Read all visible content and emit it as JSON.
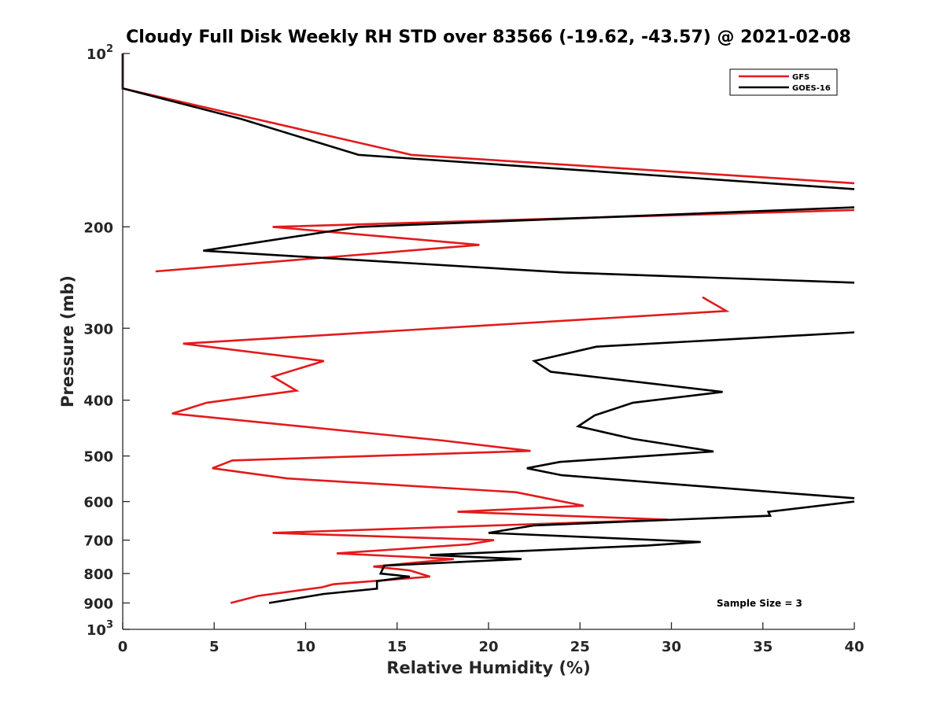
{
  "chart_data": {
    "type": "line",
    "title": "Cloudy Full Disk Weekly RH STD over 83566 (-19.62, -43.57) @ 2021-02-08",
    "xlabel": "Relative Humidity (%)",
    "ylabel": "Pressure (mb)",
    "xlim": [
      0,
      40
    ],
    "ylim": [
      100,
      1000
    ],
    "y_scale": "log",
    "y_reversed": true,
    "x_ticks": [
      "0",
      "5",
      "10",
      "15",
      "20",
      "25",
      "30",
      "35",
      "40"
    ],
    "y_ticks": [
      {
        "value": 100,
        "base": "10",
        "exp": "2",
        "label": ""
      },
      {
        "value": 200,
        "base": "",
        "exp": "",
        "label": "200"
      },
      {
        "value": 300,
        "base": "",
        "exp": "",
        "label": "300"
      },
      {
        "value": 400,
        "base": "",
        "exp": "",
        "label": "400"
      },
      {
        "value": 500,
        "base": "",
        "exp": "",
        "label": "500"
      },
      {
        "value": 600,
        "base": "",
        "exp": "",
        "label": "600"
      },
      {
        "value": 700,
        "base": "",
        "exp": "",
        "label": "700"
      },
      {
        "value": 800,
        "base": "",
        "exp": "",
        "label": "800"
      },
      {
        "value": 900,
        "base": "",
        "exp": "",
        "label": "900"
      },
      {
        "value": 1000,
        "base": "10",
        "exp": "3",
        "label": ""
      }
    ],
    "grid": false,
    "legend_position": "top-right",
    "annotation": "Sample Size = 3",
    "series": [
      {
        "name": "GFS",
        "color": "#e31a1c",
        "points": [
          [
            0,
            100
          ],
          [
            0,
            115
          ],
          [
            15.8,
            150
          ],
          [
            40,
            168
          ],
          null,
          [
            40,
            187
          ],
          [
            8.2,
            200
          ],
          [
            19.5,
            215
          ],
          [
            1.8,
            239
          ],
          null,
          [
            31.7,
            265
          ],
          [
            33,
            280
          ],
          [
            3.3,
            319
          ],
          [
            11,
            342
          ],
          [
            8.2,
            364
          ],
          [
            9.5,
            385
          ],
          [
            4.6,
            404
          ],
          [
            2.7,
            422
          ],
          [
            17.5,
            470
          ],
          [
            22.3,
            490
          ],
          [
            6,
            509
          ],
          [
            4.9,
            525
          ],
          [
            9,
            547
          ],
          [
            21.5,
            578
          ],
          [
            25.2,
            610
          ],
          [
            18.3,
            625
          ],
          [
            29.8,
            645
          ],
          [
            8.2,
            680
          ],
          [
            20.3,
            700
          ],
          [
            18.9,
            712
          ],
          [
            11.7,
            738
          ],
          [
            18.1,
            755
          ],
          [
            13.7,
            778
          ],
          [
            15.7,
            790
          ],
          [
            16.8,
            810
          ],
          [
            11.5,
            835
          ],
          [
            10.9,
            845
          ],
          [
            7.4,
            875
          ],
          [
            5.9,
            900
          ]
        ]
      },
      {
        "name": "GOES-16",
        "color": "#000000",
        "points": [
          [
            0,
            100
          ],
          [
            0,
            115
          ],
          [
            6.5,
            130
          ],
          [
            12.9,
            150
          ],
          [
            40,
            172
          ],
          null,
          [
            40,
            185
          ],
          [
            12.9,
            200
          ],
          [
            4.4,
            220
          ],
          [
            24.1,
            240
          ],
          [
            40,
            250
          ],
          null,
          [
            40,
            305
          ],
          [
            25.9,
            323
          ],
          [
            22.5,
            342
          ],
          [
            23.4,
            357
          ],
          [
            32.8,
            387
          ],
          [
            27.9,
            404
          ],
          [
            25.8,
            425
          ],
          [
            24.9,
            444
          ],
          [
            27.9,
            467
          ],
          [
            32.3,
            491
          ],
          [
            23.9,
            512
          ],
          [
            22.1,
            525
          ],
          [
            24,
            540
          ],
          [
            32.4,
            567
          ],
          [
            37.9,
            585
          ],
          [
            40,
            592
          ],
          null,
          [
            40,
            600
          ],
          [
            35.3,
            625
          ],
          [
            35.4,
            635
          ],
          [
            22.5,
            660
          ],
          [
            20,
            680
          ],
          [
            31.6,
            705
          ],
          [
            28.7,
            715
          ],
          [
            16.8,
            743
          ],
          [
            21.8,
            755
          ],
          [
            14.3,
            775
          ],
          [
            14.1,
            800
          ],
          [
            15.7,
            810
          ],
          [
            13.9,
            825
          ],
          [
            13.9,
            850
          ],
          [
            11,
            868
          ],
          [
            8,
            900
          ]
        ]
      }
    ]
  }
}
